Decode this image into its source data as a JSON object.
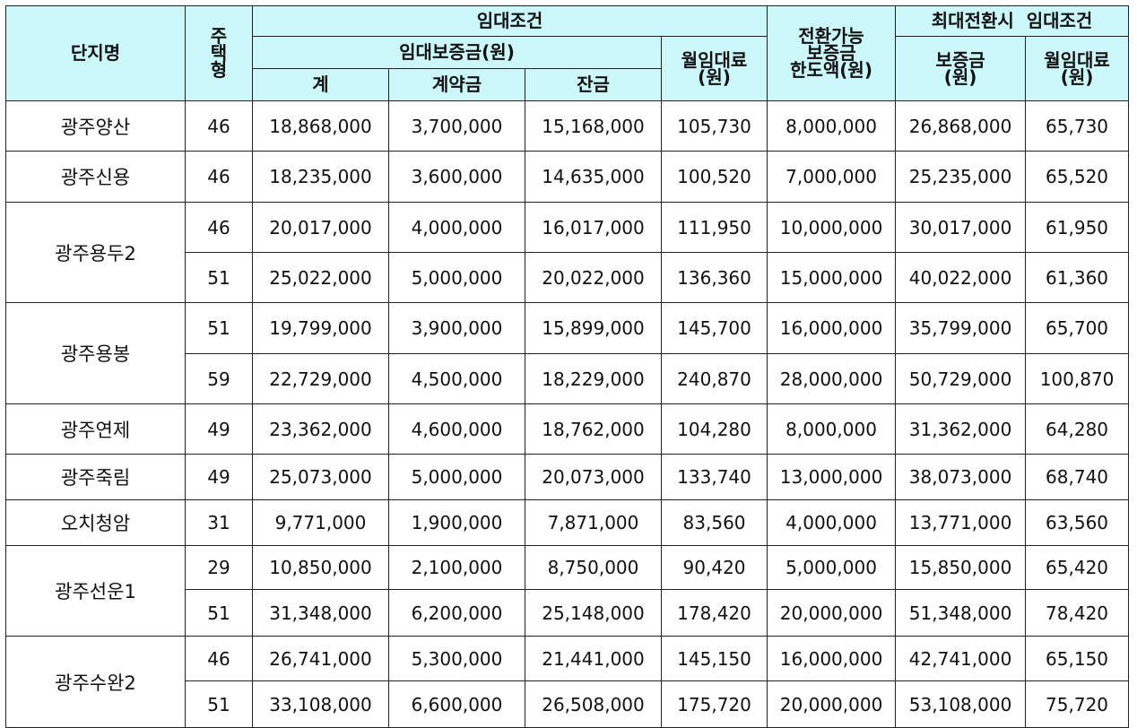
{
  "header": {
    "complex": "단지명",
    "house_type": [
      "주",
      "택",
      "형"
    ],
    "rent_terms": "임대조건",
    "deposit": "임대보증금(원)",
    "total": "계",
    "contract": "계약금",
    "balance": "잔금",
    "monthly_rent": [
      "월임대료",
      "(원)"
    ],
    "convertible": [
      "전환가능",
      "보증금",
      "한도액(원)"
    ],
    "max_conversion": "최대전환시  임대조건",
    "max_deposit": [
      "보증금",
      "(원)"
    ],
    "max_monthly": [
      "월임대료",
      "(원)"
    ]
  },
  "groups": [
    {
      "name": "광주양산",
      "rows": [
        {
          "type": "46",
          "total": "18,868,000",
          "contract": "3,700,000",
          "balance": "15,168,000",
          "monthly": "105,730",
          "convertible": "8,000,000",
          "max_deposit": "26,868,000",
          "max_monthly": "65,730"
        }
      ]
    },
    {
      "name": "광주신용",
      "rows": [
        {
          "type": "46",
          "total": "18,235,000",
          "contract": "3,600,000",
          "balance": "14,635,000",
          "monthly": "100,520",
          "convertible": "7,000,000",
          "max_deposit": "25,235,000",
          "max_monthly": "65,520"
        }
      ]
    },
    {
      "name": "광주용두2",
      "rows": [
        {
          "type": "46",
          "total": "20,017,000",
          "contract": "4,000,000",
          "balance": "16,017,000",
          "monthly": "111,950",
          "convertible": "10,000,000",
          "max_deposit": "30,017,000",
          "max_monthly": "61,950"
        },
        {
          "type": "51",
          "total": "25,022,000",
          "contract": "5,000,000",
          "balance": "20,022,000",
          "monthly": "136,360",
          "convertible": "15,000,000",
          "max_deposit": "40,022,000",
          "max_monthly": "61,360"
        }
      ]
    },
    {
      "name": "광주용봉",
      "rows": [
        {
          "type": "51",
          "total": "19,799,000",
          "contract": "3,900,000",
          "balance": "15,899,000",
          "monthly": "145,700",
          "convertible": "16,000,000",
          "max_deposit": "35,799,000",
          "max_monthly": "65,700"
        },
        {
          "type": "59",
          "total": "22,729,000",
          "contract": "4,500,000",
          "balance": "18,229,000",
          "monthly": "240,870",
          "convertible": "28,000,000",
          "max_deposit": "50,729,000",
          "max_monthly": "100,870"
        }
      ]
    },
    {
      "name": "광주연제",
      "rows": [
        {
          "type": "49",
          "total": "23,362,000",
          "contract": "4,600,000",
          "balance": "18,762,000",
          "monthly": "104,280",
          "convertible": "8,000,000",
          "max_deposit": "31,362,000",
          "max_monthly": "64,280"
        }
      ]
    },
    {
      "name": "광주죽림",
      "rows": [
        {
          "type": "49",
          "total": "25,073,000",
          "contract": "5,000,000",
          "balance": "20,073,000",
          "monthly": "133,740",
          "convertible": "13,000,000",
          "max_deposit": "38,073,000",
          "max_monthly": "68,740"
        }
      ]
    },
    {
      "name": "오치청암",
      "rows": [
        {
          "type": "31",
          "total": "9,771,000",
          "contract": "1,900,000",
          "balance": "7,871,000",
          "monthly": "83,560",
          "convertible": "4,000,000",
          "max_deposit": "13,771,000",
          "max_monthly": "63,560"
        }
      ]
    },
    {
      "name": "광주선운1",
      "rows": [
        {
          "type": "29",
          "total": "10,850,000",
          "contract": "2,100,000",
          "balance": "8,750,000",
          "monthly": "90,420",
          "convertible": "5,000,000",
          "max_deposit": "15,850,000",
          "max_monthly": "65,420"
        },
        {
          "type": "51",
          "total": "31,348,000",
          "contract": "6,200,000",
          "balance": "25,148,000",
          "monthly": "178,420",
          "convertible": "20,000,000",
          "max_deposit": "51,348,000",
          "max_monthly": "78,420"
        }
      ]
    },
    {
      "name": "광주수완2",
      "rows": [
        {
          "type": "46",
          "total": "26,741,000",
          "contract": "5,300,000",
          "balance": "21,441,000",
          "monthly": "145,150",
          "convertible": "16,000,000",
          "max_deposit": "42,741,000",
          "max_monthly": "65,150"
        },
        {
          "type": "51",
          "total": "33,108,000",
          "contract": "6,600,000",
          "balance": "26,508,000",
          "monthly": "175,720",
          "convertible": "20,000,000",
          "max_deposit": "53,108,000",
          "max_monthly": "75,720"
        }
      ]
    }
  ]
}
